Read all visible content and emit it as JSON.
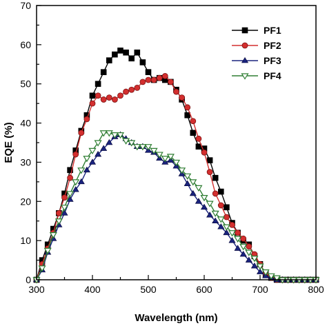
{
  "chart_data": {
    "type": "line",
    "title": "",
    "xlabel": "Wavelength (nm)",
    "ylabel": "EQE (%)",
    "xlim": [
      300,
      800
    ],
    "ylim": [
      0,
      70
    ],
    "xticks": [
      300,
      400,
      500,
      600,
      700,
      800
    ],
    "yticks": [
      0,
      10,
      20,
      30,
      40,
      50,
      60,
      70
    ],
    "grid": false,
    "legend_position": "top-right",
    "series": [
      {
        "name": "PF1",
        "color": "#000000",
        "marker": "square",
        "x": [
          300,
          310,
          320,
          330,
          340,
          350,
          360,
          370,
          380,
          390,
          400,
          410,
          420,
          430,
          440,
          450,
          460,
          470,
          480,
          490,
          500,
          510,
          520,
          530,
          540,
          550,
          560,
          570,
          580,
          590,
          600,
          610,
          620,
          630,
          640,
          650,
          660,
          670,
          680,
          690,
          700,
          710,
          720,
          730,
          740,
          750,
          760,
          770,
          780,
          790,
          800
        ],
        "y": [
          0,
          5,
          9,
          13,
          17,
          22,
          28,
          33,
          38,
          42,
          47,
          50,
          53,
          56,
          57.5,
          58.5,
          58,
          56.5,
          58,
          55.5,
          53,
          51,
          51.5,
          51,
          50.5,
          48.5,
          46,
          42,
          37.5,
          34,
          33.5,
          30.5,
          26,
          22.5,
          18.5,
          14.5,
          12,
          10,
          9,
          6,
          4,
          1.5,
          0.5,
          0,
          0,
          0,
          0,
          0,
          0,
          0,
          0
        ]
      },
      {
        "name": "PF2",
        "color": "#d32f2f",
        "marker": "circle",
        "x": [
          300,
          310,
          320,
          330,
          340,
          350,
          360,
          370,
          380,
          390,
          400,
          410,
          420,
          430,
          440,
          450,
          460,
          470,
          480,
          490,
          500,
          510,
          520,
          530,
          540,
          550,
          560,
          570,
          580,
          590,
          600,
          610,
          620,
          630,
          640,
          650,
          660,
          670,
          680,
          690,
          700,
          710,
          720,
          730,
          740,
          750,
          760,
          770,
          780,
          790,
          800
        ],
        "y": [
          0,
          4,
          8,
          12,
          17,
          21,
          26,
          32,
          37.5,
          41,
          45,
          47,
          46,
          46.5,
          46,
          47,
          48,
          48.5,
          49,
          50.5,
          51,
          51,
          51.5,
          52,
          50.5,
          48,
          46.5,
          44,
          40.5,
          36,
          32.5,
          27.5,
          22,
          19,
          16,
          14,
          12,
          10.5,
          8.5,
          6.5,
          4,
          1.5,
          0.5,
          0,
          0,
          0,
          0,
          0,
          0,
          0,
          0
        ]
      },
      {
        "name": "PF3",
        "color": "#1a237e",
        "marker": "triangle-up",
        "x": [
          300,
          310,
          320,
          330,
          340,
          350,
          360,
          370,
          380,
          390,
          400,
          410,
          420,
          430,
          440,
          450,
          460,
          470,
          480,
          490,
          500,
          510,
          520,
          530,
          540,
          550,
          560,
          570,
          580,
          590,
          600,
          610,
          620,
          630,
          640,
          650,
          660,
          670,
          680,
          690,
          700,
          710,
          720,
          730,
          740,
          750,
          760,
          770,
          780,
          790,
          800
        ],
        "y": [
          0,
          2.5,
          7,
          10.5,
          14,
          17,
          20.5,
          23,
          25,
          28,
          30,
          32,
          33.5,
          35,
          36.5,
          37,
          36,
          35,
          34,
          34,
          33,
          32.5,
          31,
          30,
          30.5,
          29,
          27,
          24.5,
          22,
          20,
          18.5,
          16.5,
          15,
          13.5,
          12,
          10,
          8,
          6.5,
          5,
          3.5,
          2,
          1,
          0.5,
          0,
          0,
          0,
          0,
          0,
          0,
          0,
          0
        ]
      },
      {
        "name": "PF4",
        "color": "#2e7d32",
        "marker": "triangle-down",
        "x": [
          300,
          310,
          320,
          330,
          340,
          350,
          360,
          370,
          380,
          390,
          400,
          410,
          420,
          430,
          440,
          450,
          460,
          470,
          480,
          490,
          500,
          510,
          520,
          530,
          540,
          550,
          560,
          570,
          580,
          590,
          600,
          610,
          620,
          630,
          640,
          650,
          660,
          670,
          680,
          690,
          700,
          710,
          720,
          730,
          740,
          750,
          760,
          770,
          780,
          790,
          800
        ],
        "y": [
          0,
          3,
          7.5,
          11.5,
          15,
          18.5,
          22,
          25,
          28,
          31,
          33,
          35,
          37.5,
          37.5,
          37,
          37,
          35.5,
          35,
          34,
          34,
          34,
          33,
          32,
          31,
          31.5,
          30,
          28,
          26.5,
          25,
          23.5,
          21,
          19.5,
          17,
          15.5,
          13.5,
          12,
          10.5,
          8.5,
          7,
          5.5,
          3.5,
          2,
          1,
          0.5,
          0,
          0,
          0,
          0,
          0,
          0,
          0
        ]
      }
    ]
  }
}
